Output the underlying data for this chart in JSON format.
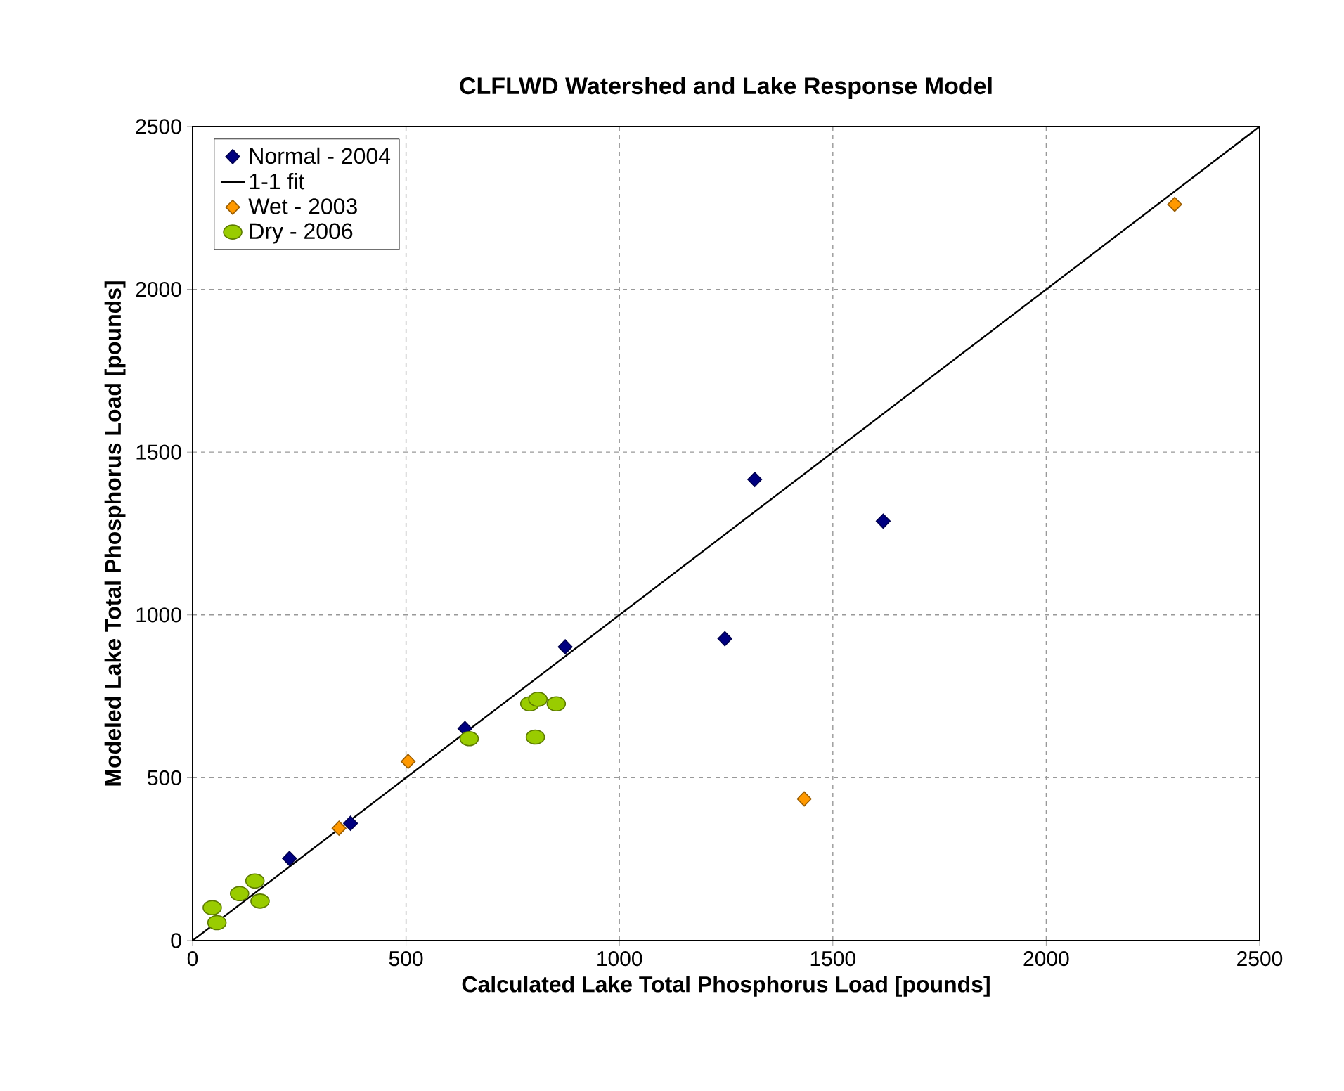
{
  "chart_data": {
    "type": "scatter",
    "title": "CLFLWD Watershed and Lake Response Model",
    "xlabel": "Calculated Lake Total Phosphorus Load [pounds]",
    "ylabel": "Modeled Lake Total Phosphorus Load [pounds]",
    "xlim": [
      0,
      2500
    ],
    "ylim": [
      0,
      2500
    ],
    "xticks": [
      0,
      500,
      1000,
      1500,
      2000,
      2500
    ],
    "yticks": [
      0,
      500,
      1000,
      1500,
      2000,
      2500
    ],
    "grid": true,
    "legend": "top left",
    "series": [
      {
        "name": "Normal - 2004",
        "marker": "diamond",
        "color": "#000080",
        "x": [
          227,
          370,
          638,
          873,
          1317,
          1618,
          1247
        ],
        "values": [
          252,
          360,
          651,
          902,
          1416,
          1288,
          927
        ]
      },
      {
        "name": "1-1 fit",
        "type": "line",
        "marker": "none",
        "line_style": "solid",
        "color": "#000000",
        "x": [
          0,
          2500
        ],
        "values": [
          0,
          2500
        ]
      },
      {
        "name": "Wet - 2003",
        "marker": "diamond",
        "color": "#ff9900",
        "x": [
          343,
          505,
          1433,
          2301
        ],
        "values": [
          345,
          550,
          435,
          2261
        ]
      },
      {
        "name": "Dry - 2006",
        "marker": "circle",
        "color": "#99cc00",
        "x": [
          46,
          57,
          110,
          146,
          158,
          648,
          790,
          809,
          852,
          803
        ],
        "values": [
          101,
          55,
          144,
          183,
          121,
          620,
          727,
          741,
          727,
          625
        ]
      }
    ]
  }
}
